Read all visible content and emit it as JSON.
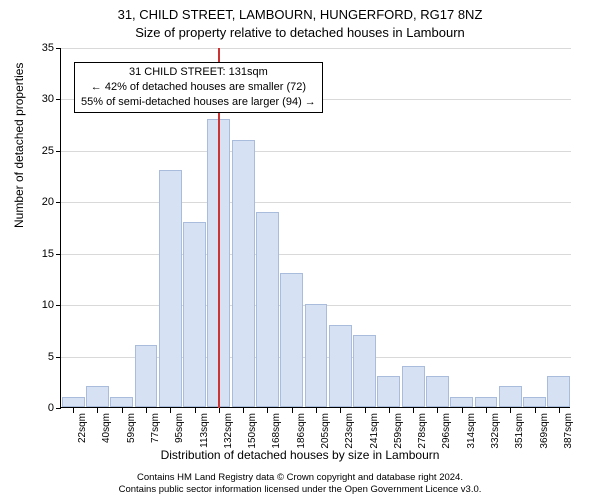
{
  "title_line1": "31, CHILD STREET, LAMBOURN, HUNGERFORD, RG17 8NZ",
  "title_line2": "Size of property relative to detached houses in Lambourn",
  "y_axis_label": "Number of detached properties",
  "x_axis_label": "Distribution of detached houses by size in Lambourn",
  "ylim": [
    0,
    35
  ],
  "ytick_step": 5,
  "grid_color": "#d9d9d9",
  "bar_fill": "#d6e1f3",
  "bar_stroke": "#a9bcdb",
  "background_color": "#ffffff",
  "marker_line_color": "#cc3333",
  "marker_value": 131,
  "x_categories": [
    "22sqm",
    "40sqm",
    "59sqm",
    "77sqm",
    "95sqm",
    "113sqm",
    "132sqm",
    "150sqm",
    "168sqm",
    "186sqm",
    "205sqm",
    "223sqm",
    "241sqm",
    "259sqm",
    "278sqm",
    "296sqm",
    "314sqm",
    "332sqm",
    "351sqm",
    "369sqm",
    "387sqm"
  ],
  "bar_values": [
    1,
    2,
    1,
    6,
    23,
    18,
    28,
    26,
    19,
    13,
    10,
    8,
    7,
    3,
    4,
    3,
    1,
    1,
    2,
    1,
    3
  ],
  "bar_width_ratio": 0.94,
  "annot_box": {
    "line1": "31 CHILD STREET: 131sqm",
    "line2": "← 42% of detached houses are smaller (72)",
    "line3": "55% of semi-detached houses are larger (94) →"
  },
  "footer_line1": "Contains HM Land Registry data © Crown copyright and database right 2024.",
  "footer_line2": "Contains public sector information licensed under the Open Government Licence v3.0.",
  "fontsize_title": 13,
  "fontsize_axis_label": 12,
  "fontsize_tick": 11,
  "fontsize_xtick": 10,
  "fontsize_annot": 11,
  "fontsize_footer": 9.5
}
